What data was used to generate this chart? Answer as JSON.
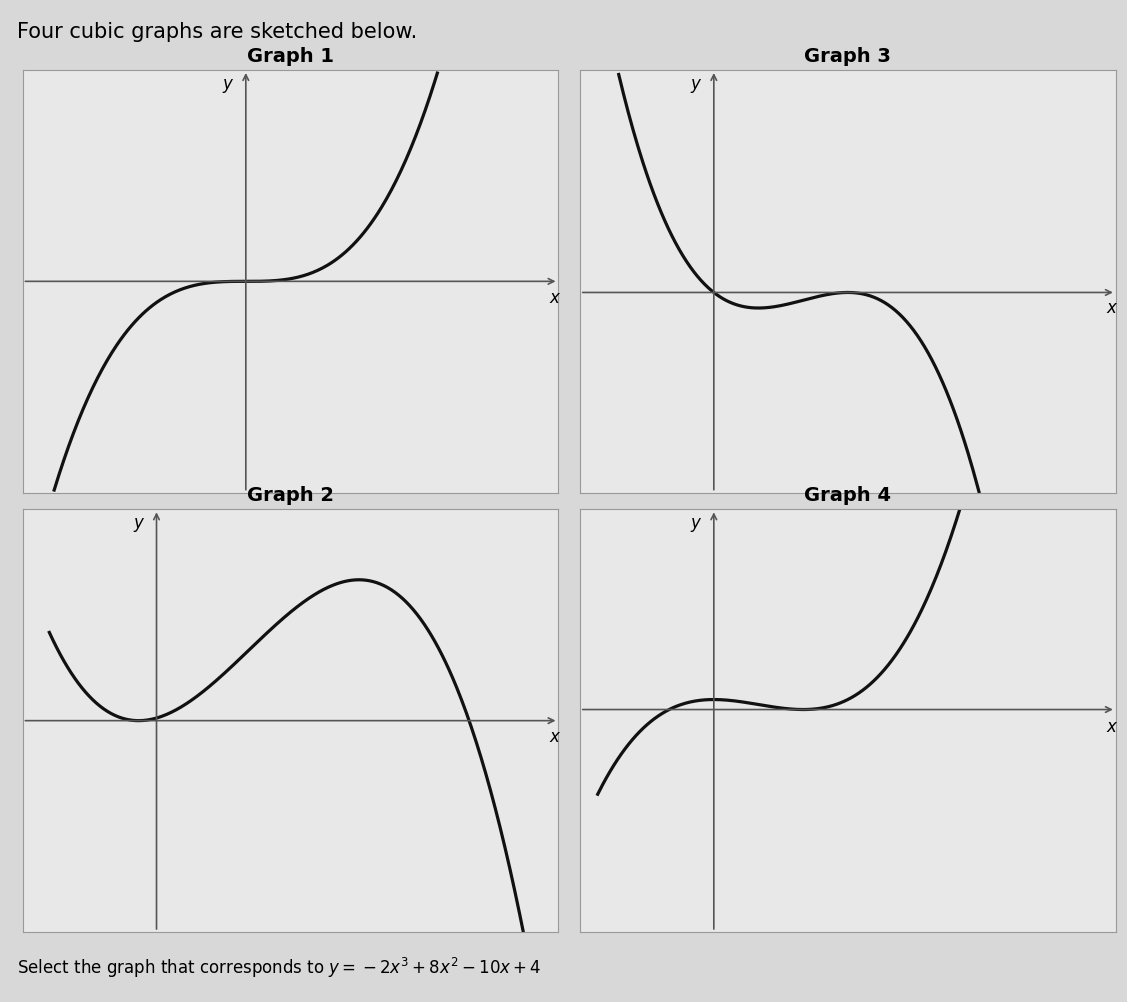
{
  "title_text": "Four cubic graphs are sketched below.",
  "subtitle_text": "Select the graph that corresponds to $y = -2x^3 + 8x^2 - 10x + 4$",
  "graph_titles": [
    "Graph 1",
    "Graph 2",
    "Graph 3",
    "Graph 4"
  ],
  "background_color": "#d8d8d8",
  "panel_bg": "#e8e8e8",
  "curve_color": "#111111",
  "axis_color": "#555555",
  "title_fontsize": 15,
  "label_fontsize": 14,
  "curve_linewidth": 2.3,
  "axis_linewidth": 1.2,
  "arrow_mutation_scale": 10,
  "g1_xlim": [
    -2.5,
    3.5
  ],
  "g1_ylim": [
    -4.5,
    4.5
  ],
  "g2_xlim": [
    -1.5,
    4.5
  ],
  "g2_ylim": [
    -4.5,
    4.5
  ],
  "g3_xlim": [
    -1.5,
    4.5
  ],
  "g3_ylim": [
    -4.5,
    5.0
  ],
  "g4_xlim": [
    -1.5,
    4.5
  ],
  "g4_ylim": [
    -5.0,
    4.5
  ]
}
